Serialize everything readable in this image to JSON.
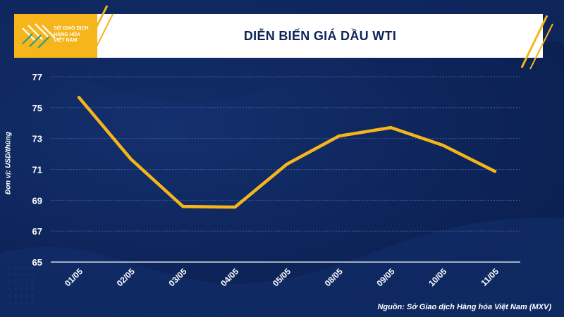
{
  "header": {
    "logo_lines": [
      "SỞ GIAO DỊCH",
      "HÀNG HÓA",
      "VIỆT NAM"
    ],
    "title": "DIỄN BIẾN GIÁ DẦU WTI"
  },
  "colors": {
    "background": "#0d2459",
    "accent": "#f5b51b",
    "line": "#f5b51b",
    "grid": "#3f5a93",
    "text": "#ffffff"
  },
  "chart_data": {
    "type": "line",
    "title": "DIỄN BIẾN GIÁ DẦU WTI",
    "xlabel": "",
    "ylabel": "Đơn vị: USD/thùng",
    "categories": [
      "01/05",
      "02/05",
      "03/05",
      "04/05",
      "05/05",
      "08/05",
      "09/05",
      "10/05",
      "11/05"
    ],
    "series": [
      {
        "values": [
          75.66,
          71.66,
          68.6,
          68.56,
          71.34,
          73.16,
          73.71,
          72.56,
          70.87
        ]
      }
    ],
    "y_ticks": [
      "65",
      "67",
      "69",
      "71",
      "73",
      "75",
      "77"
    ],
    "ylim": [
      65,
      77.5
    ],
    "grid": true
  },
  "footer": {
    "source": "Nguồn: Sở Giao dịch Hàng hóa Việt Nam (MXV)"
  }
}
